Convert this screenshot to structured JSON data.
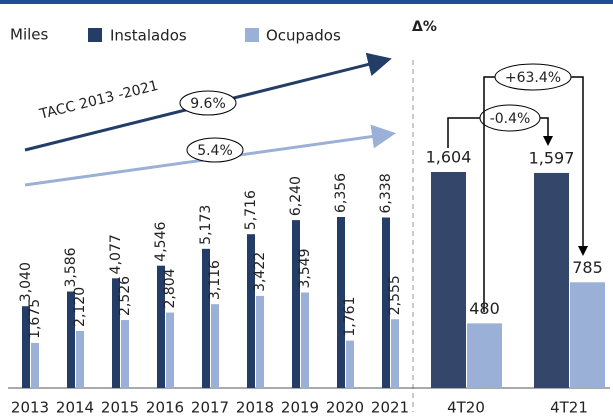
{
  "chart_data": [
    {
      "type": "bar",
      "y_label": "Miles",
      "categories": [
        "2013",
        "2014",
        "2015",
        "2016",
        "2017",
        "2018",
        "2019",
        "2020",
        "2021"
      ],
      "series": [
        {
          "name": "Instalados",
          "color": "#233d66",
          "values": [
            3040,
            3586,
            4077,
            4546,
            5173,
            5716,
            6240,
            6356,
            6338
          ],
          "value_labels": [
            "3,040",
            "3,586",
            "4,077",
            "4,546",
            "5,173",
            "5,716",
            "6,240",
            "6,356",
            "6,338"
          ]
        },
        {
          "name": "Ocupados",
          "color": "#9bb0d6",
          "values": [
            1675,
            2120,
            2526,
            2804,
            3116,
            3422,
            3549,
            1761,
            2555
          ],
          "value_labels": [
            "1,675",
            "2,120",
            "2,526",
            "2,804",
            "3,116",
            "3,422",
            "3,549",
            "1,761",
            "2,555"
          ]
        }
      ],
      "annotations": [
        "TACC 2013 -2021",
        "9.6%",
        "5.4%"
      ]
    },
    {
      "type": "bar",
      "title": "Δ%",
      "categories": [
        "4T20",
        "4T21"
      ],
      "series": [
        {
          "name": "Instalados",
          "color": "#34466a",
          "values": [
            1604,
            1597
          ],
          "value_labels": [
            "1,604",
            "1,597"
          ]
        },
        {
          "name": "Ocupados",
          "color": "#9bb0d6",
          "values": [
            480,
            785
          ]
        }
      ],
      "annotations": [
        "+63.4%",
        "-0.4%"
      ]
    }
  ]
}
